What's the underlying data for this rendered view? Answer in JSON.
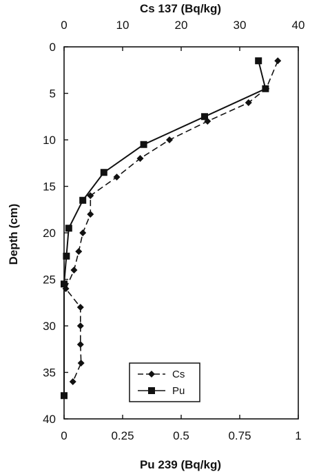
{
  "chart_data": {
    "type": "line",
    "title": "",
    "top_axis_label": "Cs 137 (Bq/kg)",
    "bottom_axis_label": "Pu 239 (Bq/kg)",
    "ylabel": "Depth (cm)",
    "top_ticks": [
      "0",
      "10",
      "20",
      "30",
      "40"
    ],
    "bottom_ticks": [
      "0",
      "0.25",
      "0.5",
      "0.75",
      "1"
    ],
    "y_ticks": [
      "0",
      "5",
      "10",
      "15",
      "20",
      "25",
      "30",
      "35",
      "40"
    ],
    "top_xlim": [
      0,
      40
    ],
    "bottom_xlim": [
      0,
      1
    ],
    "ylim": [
      0,
      40
    ],
    "y_inverted": true,
    "grid": false,
    "legend_position": "bottom-center",
    "series": [
      {
        "name": "Cs",
        "axis": "top",
        "marker": "diamond",
        "line_style": "dashed",
        "x": [
          36.5,
          34.5,
          31.5,
          24.5,
          18,
          13,
          9,
          4.5,
          4.5,
          3.2,
          2.5,
          1.7,
          0.3,
          2.8,
          2.8,
          2.8,
          2.9,
          1.5
        ],
        "y": [
          1.5,
          4.5,
          6,
          8,
          10,
          12,
          14,
          16,
          18,
          20,
          22,
          24,
          26,
          28,
          30,
          32,
          34,
          36
        ]
      },
      {
        "name": "Pu",
        "axis": "bottom",
        "marker": "square",
        "line_style": "solid",
        "x": [
          0.83,
          0.86,
          0.6,
          0.34,
          0.17,
          0.08,
          0.02,
          0.01,
          0.0,
          0.0
        ],
        "y": [
          1.5,
          4.5,
          7.5,
          10.5,
          13.5,
          16.5,
          19.5,
          22.5,
          25.5,
          37.5
        ]
      }
    ]
  }
}
